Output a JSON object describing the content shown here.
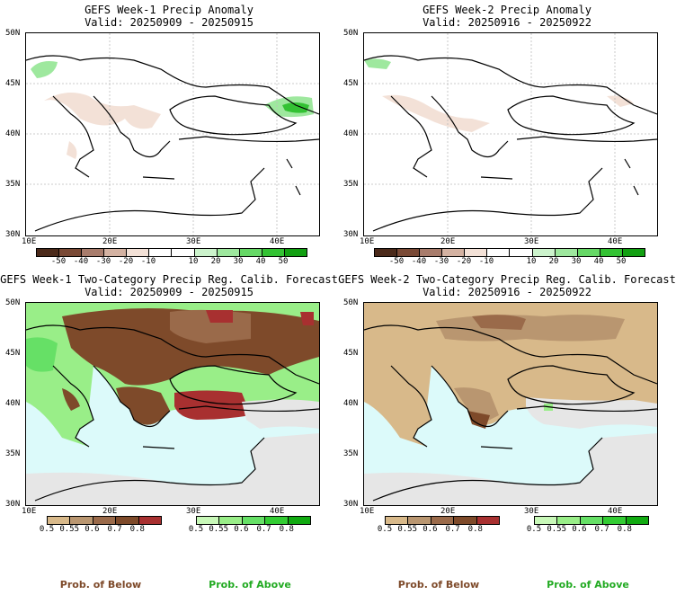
{
  "panels": {
    "p1": {
      "title": "GEFS Week-1 Precip Anomaly",
      "valid": "Valid: 20250909 - 20250915"
    },
    "p2": {
      "title": "GEFS Week-2 Precip Anomaly",
      "valid": "Valid: 20250916 - 20250922"
    },
    "p3": {
      "title": "GEFS Week-1 Two-Category Precip Reg. Calib. Forecast",
      "valid": "Valid: 20250909 - 20250915"
    },
    "p4": {
      "title": "GEFS Week-2 Two-Category Precip Reg. Calib. Forecast",
      "valid": "Valid: 20250916 - 20250922"
    }
  },
  "axes": {
    "lat_labels": [
      "50N",
      "45N",
      "40N",
      "35N",
      "30N"
    ],
    "lon_labels": [
      "10E",
      "20E",
      "30E",
      "40E"
    ]
  },
  "anomaly_colorbar": {
    "labels": [
      "-50",
      "-40",
      "-30",
      "-20",
      "-10",
      "10",
      "20",
      "30",
      "40",
      "50"
    ],
    "colors": [
      "#4b2a1a",
      "#7a4a36",
      "#a87c6c",
      "#d4b2a2",
      "#f3e1d7",
      "#ffffff",
      "#ffffff",
      "#ccf3cc",
      "#9ee89e",
      "#66d866",
      "#33c233",
      "#12a012"
    ]
  },
  "below_colorbar": {
    "labels": [
      "0.5",
      "0.55",
      "0.6",
      "0.7",
      "0.8"
    ],
    "colors": [
      "#d8b98a",
      "#b99670",
      "#9a6a4a",
      "#7e4a2a",
      "#a83030"
    ]
  },
  "above_colorbar": {
    "labels": [
      "0.5",
      "0.55",
      "0.6",
      "0.7",
      "0.8"
    ],
    "colors": [
      "#c8f8b8",
      "#99ee88",
      "#66e066",
      "#33cc33",
      "#11aa11"
    ]
  },
  "footer": {
    "below_left": "Prob. of Below",
    "above_left": "Prob. of Above",
    "below_right": "Prob. of Below",
    "above_right": "Prob. of Above"
  },
  "colors": {
    "sea_light_blue": "#dcfafa",
    "no_signal_gray": "#e6e6e6",
    "coast": "#000000"
  }
}
